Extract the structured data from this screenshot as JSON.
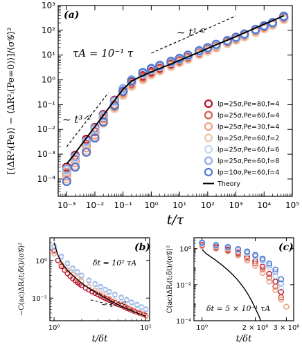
{
  "chart_data": [
    {
      "panel": "(a)",
      "type": "scatter",
      "x_scale": "log",
      "y_scale": "log",
      "xlim": [
        0.0005,
        100000
      ],
      "ylim": [
        2e-05,
        1000
      ],
      "xlabel": "t/τ",
      "ylabel": "[⟨ΔR²ᵢ(Pe)⟩ − ⟨ΔR²ᵢ(Pe=0)⟩]/⟨σ𝒢⟩²",
      "x_ticks": [
        0.001,
        0.01,
        0.1,
        1,
        10,
        100,
        1000,
        10000,
        100000
      ],
      "x_tick_labels": [
        "10⁻³",
        "10⁻²",
        "10⁻¹",
        "10⁰",
        "10¹",
        "10²",
        "10³",
        "10⁴",
        "10⁵"
      ],
      "y_ticks": [
        0.0001,
        0.001,
        0.01,
        0.1,
        1,
        10,
        100,
        1000
      ],
      "y_tick_labels": [
        "10⁻⁴",
        "10⁻³",
        "10⁻²",
        "10⁻¹",
        "10⁰",
        "10¹",
        "10²",
        "10³"
      ],
      "annotations": {
        "tau_a": "τA = 10⁻¹ τ",
        "slope_short": "~ t³ᐟ²",
        "slope_long": "~ t¹ᐟ²"
      },
      "legend_placement": "right",
      "series": [
        {
          "name": "lp=25σ,Pe=80,f=4",
          "color": "#b5122e",
          "x": [
            0.001,
            0.002,
            0.005,
            0.01,
            0.02,
            0.05,
            0.1,
            0.2,
            0.5,
            1,
            2,
            5,
            10,
            20,
            50,
            100,
            200,
            500,
            1000,
            2000,
            5000,
            10000,
            20000,
            50000
          ],
          "y": [
            0.0003,
            0.0009,
            0.004,
            0.012,
            0.04,
            0.15,
            0.42,
            0.85,
            1.5,
            2.2,
            3.1,
            4.6,
            6.3,
            8.6,
            13,
            18,
            24,
            36,
            48,
            65,
            100,
            140,
            190,
            330
          ]
        },
        {
          "name": "lp=25σ,Pe=60,f=4",
          "color": "#d95a4c",
          "x": [
            0.001,
            0.002,
            0.005,
            0.01,
            0.02,
            0.05,
            0.1,
            0.2,
            0.5,
            1,
            2,
            5,
            10,
            20,
            50,
            100,
            200,
            500,
            1000,
            2000,
            5000,
            10000,
            20000,
            50000
          ],
          "y": [
            0.00018,
            0.0006,
            0.0025,
            0.008,
            0.028,
            0.1,
            0.32,
            0.7,
            1.3,
            1.9,
            2.7,
            4.0,
            5.6,
            7.7,
            12,
            16,
            22,
            32,
            44,
            60,
            92,
            130,
            175,
            300
          ]
        },
        {
          "name": "lp=25σ,Pe=30,f=4",
          "color": "#eda080",
          "x": [
            0.001,
            0.002,
            0.005,
            0.01,
            0.02,
            0.05,
            0.1,
            0.2,
            0.5,
            1,
            2,
            5,
            10,
            20,
            50,
            100,
            200,
            500,
            1000,
            2000,
            5000,
            10000,
            20000,
            50000
          ],
          "y": [
            0.00013,
            0.00045,
            0.0018,
            0.006,
            0.022,
            0.08,
            0.27,
            0.6,
            1.1,
            1.7,
            2.4,
            3.6,
            5.1,
            7.0,
            11,
            15,
            20,
            30,
            41,
            56,
            85,
            120,
            165,
            280
          ]
        },
        {
          "name": "lp=25σ,Pe=60,f=2",
          "color": "#f0c4aa",
          "x": [
            0.001,
            0.002,
            0.005,
            0.01,
            0.02,
            0.05,
            0.1,
            0.2,
            0.5,
            1,
            2,
            5,
            10,
            20,
            50,
            100,
            200,
            500,
            1000,
            2000,
            5000,
            10000,
            20000,
            50000
          ],
          "y": [
            0.0001,
            0.00035,
            0.0014,
            0.005,
            0.018,
            0.07,
            0.24,
            0.55,
            1.0,
            1.6,
            2.3,
            3.5,
            4.9,
            6.8,
            10.5,
            14.5,
            19.5,
            29,
            40,
            54,
            82,
            115,
            160,
            270
          ]
        },
        {
          "name": "lp=25σ,Pe=60,f=6",
          "color": "#c6d4ef",
          "x": [
            0.001,
            0.002,
            0.005,
            0.01,
            0.02,
            0.05,
            0.1,
            0.2,
            0.5,
            1,
            2,
            5,
            10,
            20,
            50,
            100,
            200,
            500,
            1000,
            2000,
            5000,
            10000,
            20000,
            50000
          ],
          "y": [
            0.00022,
            0.0007,
            0.003,
            0.01,
            0.033,
            0.13,
            0.4,
            0.9,
            1.7,
            2.5,
            3.4,
            5.0,
            6.8,
            9.2,
            14,
            19,
            25,
            37,
            50,
            68,
            105,
            150,
            200,
            350
          ]
        },
        {
          "name": "lp=25σ,Pe=60,f=8",
          "color": "#8eaee6",
          "x": [
            0.001,
            0.002,
            0.005,
            0.01,
            0.02,
            0.05,
            0.1,
            0.2,
            0.5,
            1,
            2,
            5,
            10,
            20,
            50,
            100,
            200,
            500,
            1000,
            2000,
            5000,
            10000,
            20000,
            50000
          ],
          "y": [
            0.00025,
            0.0008,
            0.0034,
            0.011,
            0.036,
            0.14,
            0.45,
            1.0,
            1.9,
            2.7,
            3.7,
            5.4,
            7.2,
            9.8,
            15,
            20,
            27,
            39,
            53,
            72,
            110,
            155,
            210,
            380
          ]
        },
        {
          "name": "lp=10σ,Pe=60,f=4",
          "color": "#4f76d2",
          "x": [
            0.001,
            0.002,
            0.005,
            0.01,
            0.02,
            0.05,
            0.1,
            0.2,
            0.5,
            1,
            2,
            5,
            10,
            20,
            50,
            100,
            200,
            500,
            1000,
            2000,
            5000,
            10000,
            20000,
            50000
          ],
          "y": [
            8e-05,
            0.0003,
            0.0012,
            0.0045,
            0.02,
            0.09,
            0.35,
            0.9,
            2.0,
            2.9,
            3.9,
            5.6,
            7.4,
            10,
            15,
            20,
            27,
            38,
            52,
            70,
            108,
            150,
            205,
            360
          ]
        },
        {
          "name": "Theory",
          "color": "#000000",
          "line": true,
          "x": [
            0.001,
            0.002,
            0.005,
            0.01,
            0.02,
            0.05,
            0.1,
            0.2,
            0.5,
            1,
            2,
            5,
            10,
            20,
            50,
            100,
            200,
            500,
            1000,
            2000,
            5000,
            10000,
            20000,
            50000
          ],
          "y": [
            0.0004,
            0.0011,
            0.0045,
            0.013,
            0.037,
            0.15,
            0.42,
            0.9,
            1.5,
            2.1,
            2.9,
            4.4,
            6.1,
            8.5,
            13.2,
            18.5,
            26,
            40,
            56,
            79,
            125,
            175,
            245,
            390
          ]
        }
      ]
    },
    {
      "panel": "(b)",
      "type": "scatter",
      "x_scale": "log",
      "y_scale": "log",
      "xlim": [
        0.9,
        11
      ],
      "ylim": [
        0.025,
        4
      ],
      "xlabel": "t/δt",
      "ylabel": "−C(ac)ΔRᵢ(t;δt)/⟨σ𝒢⟩²",
      "x_ticks": [
        1,
        10
      ],
      "x_tick_labels": [
        "10⁰",
        "10¹"
      ],
      "y_ticks": [
        0.1,
        1
      ],
      "y_tick_labels": [
        "10⁻¹",
        "10⁰"
      ],
      "annotations": {
        "delta_t": "δt = 10² τA",
        "slope": "~ t⁻³ᐟ²"
      },
      "series": [
        {
          "name": "lp=25σ,Pe=80,f=4",
          "color": "#b5122e",
          "x": [
            1.0,
            1.1,
            1.2,
            1.3,
            1.4,
            1.5,
            1.6,
            1.7,
            1.8,
            1.9,
            2.0,
            2.2,
            2.4,
            2.6,
            2.8,
            3.0,
            3.2,
            3.4,
            3.6,
            3.8,
            4.0,
            4.3,
            4.6,
            5.0,
            5.4,
            5.8,
            6.2,
            6.6,
            7.0,
            7.5,
            8.0,
            8.5,
            9.0,
            9.5,
            10.0
          ],
          "y": [
            1.8,
            1.0,
            0.7,
            0.55,
            0.45,
            0.38,
            0.33,
            0.29,
            0.26,
            0.235,
            0.215,
            0.185,
            0.165,
            0.148,
            0.135,
            0.124,
            0.114,
            0.106,
            0.099,
            0.093,
            0.088,
            0.081,
            0.075,
            0.068,
            0.063,
            0.058,
            0.054,
            0.051,
            0.048,
            0.045,
            0.042,
            0.04,
            0.038,
            0.036,
            0.034
          ]
        },
        {
          "name": "lp=25σ,Pe=60,f=8",
          "color": "#8eaee6",
          "x": [
            1.0,
            1.2,
            1.4,
            1.6,
            1.8,
            2.0,
            2.4,
            2.8,
            3.2,
            3.6,
            4.0,
            4.6,
            5.4,
            6.2,
            7.0,
            8.0,
            9.0,
            10.0
          ],
          "y": [
            2.4,
            1.3,
            0.85,
            0.62,
            0.5,
            0.4,
            0.3,
            0.24,
            0.2,
            0.17,
            0.15,
            0.125,
            0.105,
            0.09,
            0.078,
            0.067,
            0.058,
            0.051
          ]
        },
        {
          "name": "lp=25σ,Pe=60,f=6",
          "color": "#c6d4ef",
          "x": [
            1.0,
            1.2,
            1.4,
            1.6,
            1.8,
            2.0,
            2.4,
            2.8,
            3.2,
            3.6,
            4.0,
            4.6,
            5.4,
            6.2,
            7.0,
            8.0,
            9.0,
            10.0
          ],
          "y": [
            2.2,
            1.2,
            0.8,
            0.58,
            0.47,
            0.38,
            0.28,
            0.225,
            0.185,
            0.16,
            0.14,
            0.118,
            0.098,
            0.084,
            0.073,
            0.063,
            0.055,
            0.048
          ]
        },
        {
          "name": "lp=25σ,Pe=30,f=4",
          "color": "#eda080",
          "x": [
            1.0,
            1.2,
            1.4,
            1.6,
            1.8,
            2.0,
            2.4,
            2.8,
            3.2,
            3.6,
            4.0,
            4.6,
            5.4,
            6.2,
            7.0,
            8.0,
            9.0,
            10.0
          ],
          "y": [
            1.5,
            0.8,
            0.55,
            0.42,
            0.34,
            0.28,
            0.2,
            0.16,
            0.13,
            0.112,
            0.098,
            0.083,
            0.068,
            0.058,
            0.05,
            0.043,
            0.038,
            0.033
          ]
        },
        {
          "name": "Theory",
          "color": "#000000",
          "line": true,
          "x": [
            1.0,
            1.1,
            1.2,
            1.4,
            1.6,
            1.8,
            2.0,
            2.5,
            3.0,
            4.0,
            5.0,
            6.0,
            7.0,
            8.0,
            9.0,
            10.0
          ],
          "y": [
            3.0,
            1.4,
            0.9,
            0.55,
            0.4,
            0.31,
            0.25,
            0.17,
            0.13,
            0.088,
            0.066,
            0.054,
            0.046,
            0.04,
            0.036,
            0.033
          ]
        }
      ]
    },
    {
      "panel": "(c)",
      "type": "scatter",
      "x_scale": "log",
      "y_scale": "log",
      "xlim": [
        0.9,
        3.3
      ],
      "ylim": [
        0.0001,
        4
      ],
      "xlabel": "t/δt",
      "ylabel": "C(ac)ΔRᵢ(t;δt)/⟨σ𝒢⟩²",
      "x_ticks": [
        1,
        2,
        3
      ],
      "x_tick_labels": [
        "10⁰",
        "2 × 10⁰",
        "3 × 10⁰"
      ],
      "y_ticks": [
        0.0001,
        0.01,
        1
      ],
      "y_tick_labels": [
        "10⁻⁴",
        "10⁻²",
        "10⁰"
      ],
      "annotations": {
        "delta_t": "δt = 5 × 10⁻¹ τA"
      },
      "series": [
        {
          "name": "lp=25σ,Pe=80,f=4",
          "color": "#b5122e",
          "x": [
            1.0,
            1.2,
            1.4,
            1.6,
            1.8,
            2.0,
            2.2,
            2.4,
            2.6,
            2.8
          ],
          "y": [
            1.6,
            1.2,
            0.9,
            0.6,
            0.35,
            0.2,
            0.1,
            0.04,
            0.015,
            0.004
          ]
        },
        {
          "name": "lp=25σ,Pe=60,f=4",
          "color": "#d95a4c",
          "x": [
            1.0,
            1.2,
            1.4,
            1.6,
            1.8,
            2.0,
            2.2,
            2.4,
            2.6,
            2.8
          ],
          "y": [
            1.5,
            1.1,
            0.8,
            0.5,
            0.28,
            0.15,
            0.07,
            0.025,
            0.008,
            0.002
          ]
        },
        {
          "name": "lp=25σ,Pe=30,f=4",
          "color": "#eda080",
          "x": [
            1.0,
            1.2,
            1.4,
            1.6,
            1.8,
            2.0,
            2.2,
            2.4,
            2.6,
            2.8,
            3.0
          ],
          "y": [
            1.4,
            1.0,
            0.7,
            0.42,
            0.22,
            0.11,
            0.045,
            0.015,
            0.005,
            0.0015,
            0.0006
          ]
        },
        {
          "name": "lp=25σ,Pe=60,f=6",
          "color": "#c6d4ef",
          "x": [
            1.0,
            1.2,
            1.4,
            1.6,
            1.8,
            2.0,
            2.2,
            2.4,
            2.6,
            2.8
          ],
          "y": [
            1.9,
            1.4,
            1.1,
            0.8,
            0.55,
            0.35,
            0.2,
            0.09,
            0.03,
            0.006
          ]
        },
        {
          "name": "lp=25σ,Pe=60,f=8",
          "color": "#8eaee6",
          "x": [
            1.0,
            1.2,
            1.4,
            1.6,
            1.8,
            2.0,
            2.2,
            2.4,
            2.6,
            2.8
          ],
          "y": [
            2.0,
            1.5,
            1.2,
            0.9,
            0.62,
            0.4,
            0.24,
            0.12,
            0.05,
            0.012
          ]
        },
        {
          "name": "lp=10σ,Pe=60,f=4",
          "color": "#4f76d2",
          "x": [
            1.0,
            1.2,
            1.4,
            1.6,
            1.8,
            2.0,
            2.2,
            2.4,
            2.6,
            2.8
          ],
          "y": [
            2.2,
            1.6,
            1.25,
            0.95,
            0.7,
            0.45,
            0.28,
            0.15,
            0.07,
            0.02
          ]
        },
        {
          "name": "Theory",
          "color": "#000000",
          "line": true,
          "x": [
            1.0,
            1.05,
            1.1,
            1.2,
            1.3,
            1.4,
            1.5,
            1.6,
            1.7,
            1.8,
            1.9,
            2.0,
            2.1,
            2.15
          ],
          "y": [
            0.9,
            0.55,
            0.4,
            0.22,
            0.12,
            0.065,
            0.034,
            0.017,
            0.008,
            0.0035,
            0.0014,
            0.0005,
            0.00018,
            0.0001
          ]
        }
      ]
    }
  ]
}
